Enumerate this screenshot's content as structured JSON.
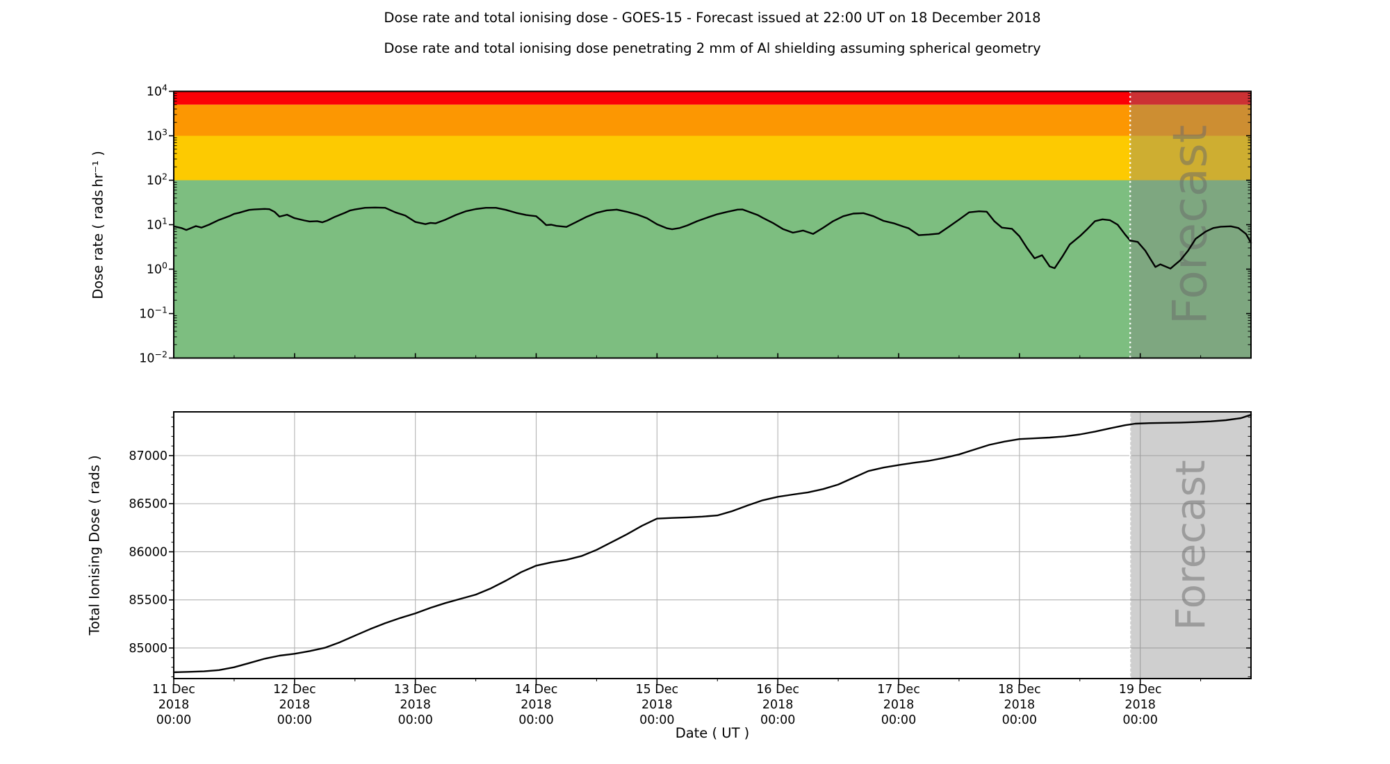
{
  "figure": {
    "title": "Dose rate and total ionising dose - GOES-15 - Forecast issued at 22:00 UT on 18 December 2018",
    "subtitle": "Dose rate and total ionising dose penetrating 2 mm of Al shielding assuming spherical geometry"
  },
  "chart_data": {
    "type": "line",
    "x_axis": {
      "label": "Date ( UT )",
      "unit": "hours after 11 Dec 2018 00:00 UT",
      "range_hours": [
        0,
        214
      ],
      "minor_tick_interval_hours": 12,
      "major_ticks": [
        {
          "hours": 0,
          "lines": [
            "11 Dec",
            "2018",
            "00:00"
          ]
        },
        {
          "hours": 24,
          "lines": [
            "12 Dec",
            "2018",
            "00:00"
          ]
        },
        {
          "hours": 48,
          "lines": [
            "13 Dec",
            "2018",
            "00:00"
          ]
        },
        {
          "hours": 72,
          "lines": [
            "14 Dec",
            "2018",
            "00:00"
          ]
        },
        {
          "hours": 96,
          "lines": [
            "15 Dec",
            "2018",
            "00:00"
          ]
        },
        {
          "hours": 120,
          "lines": [
            "16 Dec",
            "2018",
            "00:00"
          ]
        },
        {
          "hours": 144,
          "lines": [
            "17 Dec",
            "2018",
            "00:00"
          ]
        },
        {
          "hours": 168,
          "lines": [
            "18 Dec",
            "2018",
            "00:00"
          ]
        },
        {
          "hours": 192,
          "lines": [
            "19 Dec",
            "2018",
            "00:00"
          ]
        }
      ]
    },
    "forecast": {
      "label": "Forecast",
      "start_hours": 190,
      "start_time": "18 Dec 2018 22:00 UT",
      "overlay_color": "rgba(128,128,128,0.38)",
      "divider_color": "#ffffff",
      "watermark_color": "#6a6a6a"
    },
    "panels": [
      {
        "name": "dose-rate",
        "ylabel": "Dose rate ( rads hr⁻¹ )",
        "yscale": "log",
        "ylim": [
          0.01,
          10000
        ],
        "yticks": [
          {
            "value": 10000,
            "label": "10^4"
          },
          {
            "value": 1000,
            "label": "10^3"
          },
          {
            "value": 100,
            "label": "10^2"
          },
          {
            "value": 10,
            "label": "10^1"
          },
          {
            "value": 1,
            "label": "10^0"
          },
          {
            "value": 0.1,
            "label": "10^-1"
          },
          {
            "value": 0.01,
            "label": "10^-2"
          }
        ],
        "bands": [
          {
            "name": "red",
            "from": 5000,
            "to": 10000,
            "color": "#fb0006"
          },
          {
            "name": "orange",
            "from": 1000,
            "to": 5000,
            "color": "#fc9702"
          },
          {
            "name": "yellow",
            "from": 100,
            "to": 1000,
            "color": "#fdca01"
          },
          {
            "name": "green",
            "from": 0.01,
            "to": 100,
            "color": "#7dbe80"
          }
        ],
        "line_color": "#000000",
        "points_hours_value": [
          [
            0,
            9.2
          ],
          [
            1.5,
            8.4
          ],
          [
            2.5,
            7.6
          ],
          [
            4.4,
            9.3
          ],
          [
            5.5,
            8.6
          ],
          [
            7,
            10
          ],
          [
            9,
            12.8
          ],
          [
            11,
            15.5
          ],
          [
            12,
            17.5
          ],
          [
            13,
            18.6
          ],
          [
            14,
            20
          ],
          [
            15,
            21.5
          ],
          [
            16,
            22
          ],
          [
            17,
            22.3
          ],
          [
            18,
            22.6
          ],
          [
            19,
            22.3
          ],
          [
            20,
            19.5
          ],
          [
            21,
            15.2
          ],
          [
            22.5,
            16.8
          ],
          [
            24,
            14
          ],
          [
            26,
            12.4
          ],
          [
            27,
            11.8
          ],
          [
            28.5,
            12
          ],
          [
            29.5,
            11.3
          ],
          [
            30.5,
            12.4
          ],
          [
            32,
            15
          ],
          [
            34,
            18.5
          ],
          [
            35,
            20.8
          ],
          [
            36,
            22
          ],
          [
            38,
            24
          ],
          [
            40,
            24.3
          ],
          [
            42,
            24
          ],
          [
            44,
            19
          ],
          [
            46,
            16
          ],
          [
            48,
            11.5
          ],
          [
            50,
            10.3
          ],
          [
            51,
            11
          ],
          [
            52,
            10.7
          ],
          [
            54,
            13
          ],
          [
            56,
            16.5
          ],
          [
            58,
            20
          ],
          [
            60,
            22.5
          ],
          [
            62,
            24
          ],
          [
            64,
            24
          ],
          [
            66,
            21.5
          ],
          [
            68,
            18.5
          ],
          [
            70,
            16.5
          ],
          [
            72,
            15.5
          ],
          [
            73,
            12.5
          ],
          [
            74,
            9.8
          ],
          [
            75,
            10
          ],
          [
            76,
            9.4
          ],
          [
            78,
            8.9
          ],
          [
            80,
            11.5
          ],
          [
            82,
            15
          ],
          [
            84,
            18.5
          ],
          [
            86,
            21
          ],
          [
            88,
            21.8
          ],
          [
            90,
            19.5
          ],
          [
            92,
            17
          ],
          [
            94,
            14
          ],
          [
            96,
            10.2
          ],
          [
            98,
            8.3
          ],
          [
            99,
            7.9
          ],
          [
            100.5,
            8.4
          ],
          [
            102,
            9.6
          ],
          [
            104,
            12
          ],
          [
            106,
            14.5
          ],
          [
            108,
            17.2
          ],
          [
            110,
            19.5
          ],
          [
            112,
            21.8
          ],
          [
            113,
            22
          ],
          [
            114,
            20
          ],
          [
            116,
            16.5
          ],
          [
            117,
            14.3
          ],
          [
            119,
            11
          ],
          [
            121,
            8
          ],
          [
            123,
            6.6
          ],
          [
            125,
            7.4
          ],
          [
            127,
            6.2
          ],
          [
            129,
            8.5
          ],
          [
            131,
            12
          ],
          [
            133,
            15.5
          ],
          [
            135,
            17.8
          ],
          [
            137,
            18.2
          ],
          [
            139,
            15.5
          ],
          [
            141,
            12.2
          ],
          [
            143,
            10.8
          ],
          [
            145,
            9
          ],
          [
            146,
            8.3
          ],
          [
            148,
            5.8
          ],
          [
            150,
            6
          ],
          [
            152,
            6.3
          ],
          [
            154,
            9
          ],
          [
            156,
            13
          ],
          [
            158,
            19
          ],
          [
            160,
            20
          ],
          [
            161.5,
            19.6
          ],
          [
            163,
            12
          ],
          [
            164.5,
            8.6
          ],
          [
            166.5,
            8.1
          ],
          [
            168,
            5.5
          ],
          [
            169.5,
            3
          ],
          [
            171,
            1.75
          ],
          [
            172.5,
            2.05
          ],
          [
            174,
            1.15
          ],
          [
            175,
            1.05
          ],
          [
            176.5,
            1.9
          ],
          [
            178,
            3.6
          ],
          [
            180,
            5.5
          ],
          [
            181.5,
            8
          ],
          [
            183,
            12
          ],
          [
            184.5,
            13.2
          ],
          [
            186,
            12.6
          ],
          [
            187.5,
            10
          ],
          [
            189,
            6
          ],
          [
            190,
            4.4
          ],
          [
            191.5,
            4.1
          ],
          [
            193,
            2.6
          ],
          [
            195,
            1.12
          ],
          [
            196,
            1.28
          ],
          [
            198,
            1.03
          ],
          [
            200,
            1.6
          ],
          [
            201.5,
            2.6
          ],
          [
            203,
            4.8
          ],
          [
            205,
            7
          ],
          [
            206.5,
            8.4
          ],
          [
            208,
            9
          ],
          [
            210,
            9.2
          ],
          [
            211.5,
            8.4
          ],
          [
            213,
            6.2
          ],
          [
            214,
            3.9
          ]
        ]
      },
      {
        "name": "total-ionising-dose",
        "ylabel": "Total Ionising Dose ( rads )",
        "yscale": "linear",
        "ylim": [
          84682,
          87455
        ],
        "yticks": [
          {
            "value": 87000,
            "label": "87000"
          },
          {
            "value": 86500,
            "label": "86500"
          },
          {
            "value": 86000,
            "label": "86000"
          },
          {
            "value": 85500,
            "label": "85500"
          },
          {
            "value": 85000,
            "label": "85000"
          }
        ],
        "grid_color": "#b3b3b3",
        "minor_tick_interval": 100,
        "line_color": "#000000",
        "points_hours_value": [
          [
            0,
            84748
          ],
          [
            3,
            84752
          ],
          [
            6,
            84757
          ],
          [
            9,
            84770
          ],
          [
            12,
            84800
          ],
          [
            15,
            84843
          ],
          [
            18,
            84888
          ],
          [
            21,
            84920
          ],
          [
            24,
            84940
          ],
          [
            27,
            84968
          ],
          [
            30,
            85002
          ],
          [
            33,
            85060
          ],
          [
            36,
            85128
          ],
          [
            39,
            85196
          ],
          [
            42,
            85258
          ],
          [
            45,
            85312
          ],
          [
            48,
            85360
          ],
          [
            51,
            85418
          ],
          [
            54,
            85468
          ],
          [
            57,
            85512
          ],
          [
            60,
            85555
          ],
          [
            63,
            85620
          ],
          [
            66,
            85700
          ],
          [
            69,
            85788
          ],
          [
            72,
            85856
          ],
          [
            75,
            85890
          ],
          [
            78,
            85916
          ],
          [
            81,
            85956
          ],
          [
            84,
            86020
          ],
          [
            87,
            86100
          ],
          [
            90,
            86182
          ],
          [
            93,
            86270
          ],
          [
            96,
            86345
          ],
          [
            99,
            86352
          ],
          [
            102,
            86358
          ],
          [
            105,
            86366
          ],
          [
            108,
            86378
          ],
          [
            111,
            86424
          ],
          [
            114,
            86482
          ],
          [
            117,
            86536
          ],
          [
            120,
            86572
          ],
          [
            123,
            86596
          ],
          [
            126,
            86618
          ],
          [
            129,
            86652
          ],
          [
            132,
            86700
          ],
          [
            135,
            86770
          ],
          [
            138,
            86840
          ],
          [
            141,
            86876
          ],
          [
            144,
            86902
          ],
          [
            147,
            86926
          ],
          [
            150,
            86946
          ],
          [
            153,
            86976
          ],
          [
            156,
            87012
          ],
          [
            159,
            87062
          ],
          [
            162,
            87112
          ],
          [
            165,
            87146
          ],
          [
            168,
            87172
          ],
          [
            171,
            87180
          ],
          [
            174,
            87188
          ],
          [
            177,
            87200
          ],
          [
            180,
            87220
          ],
          [
            183,
            87250
          ],
          [
            186,
            87284
          ],
          [
            189,
            87316
          ],
          [
            191,
            87332
          ],
          [
            194,
            87338
          ],
          [
            197,
            87341
          ],
          [
            200,
            87344
          ],
          [
            203,
            87349
          ],
          [
            206,
            87356
          ],
          [
            209,
            87368
          ],
          [
            212,
            87390
          ],
          [
            214,
            87425
          ]
        ]
      }
    ]
  }
}
